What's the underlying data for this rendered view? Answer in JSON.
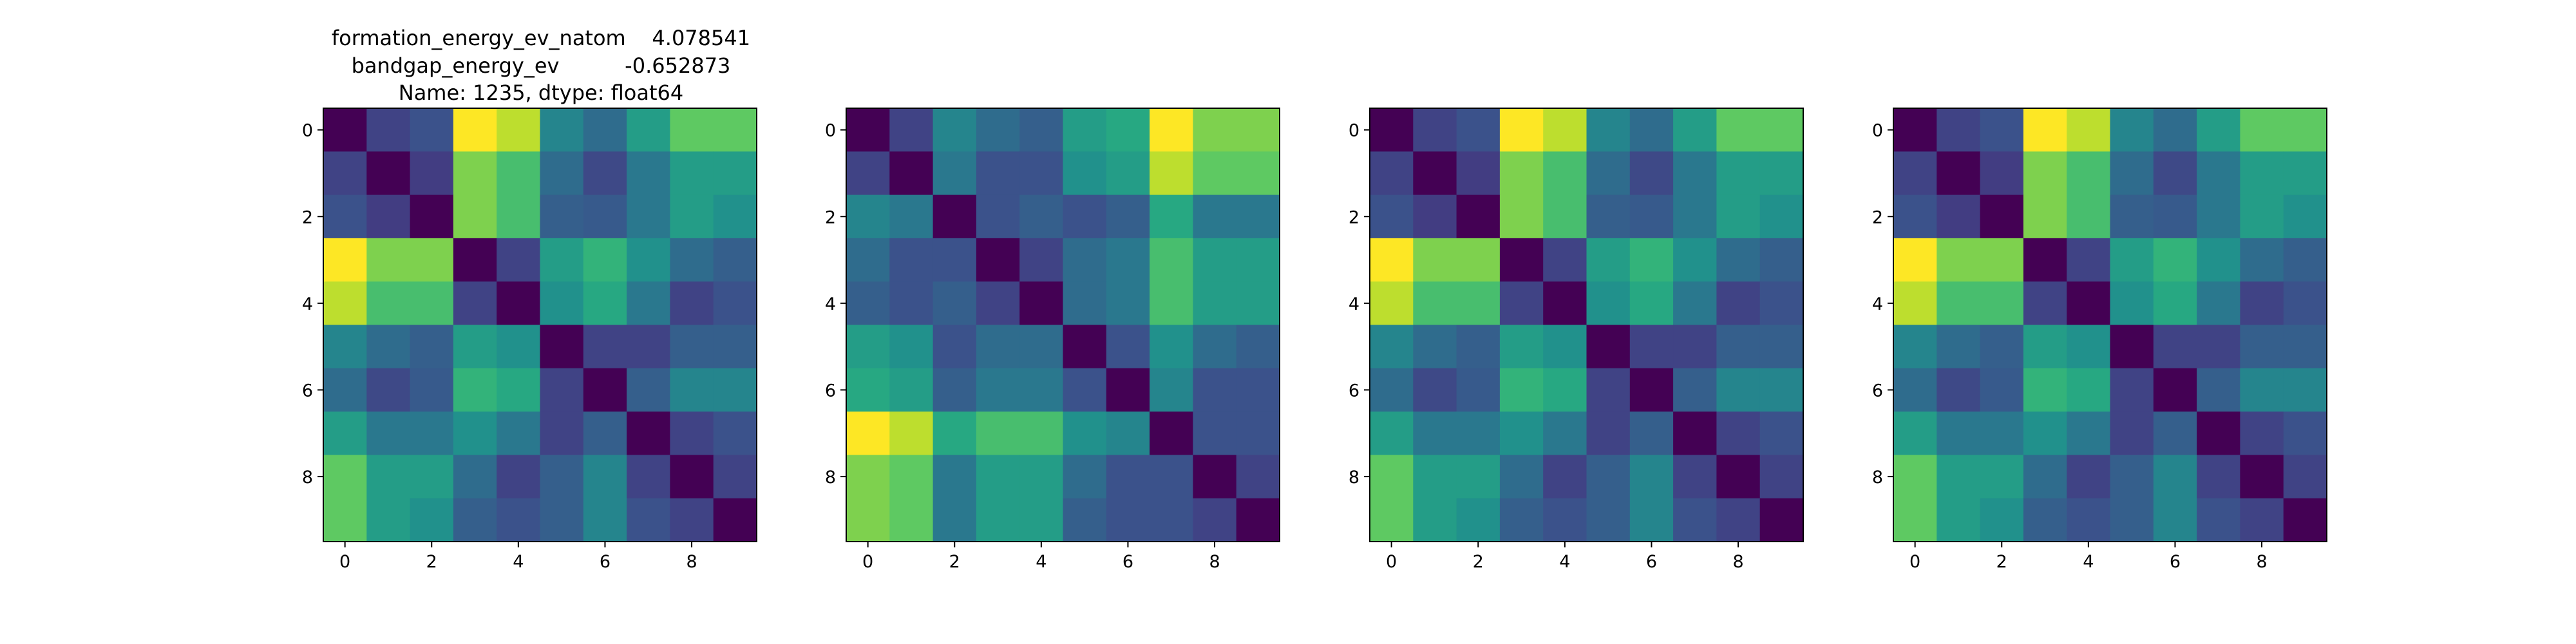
{
  "figure": {
    "title_lines": [
      "formation_energy_ev_natom    4.078541",
      "bandgap_energy_ev          -0.652873",
      "Name: 1235, dtype: float64"
    ]
  },
  "colormap": "viridis",
  "chart_data": [
    {
      "type": "heatmap",
      "title": "",
      "x_ticks": [
        0,
        2,
        4,
        6,
        8
      ],
      "y_ticks": [
        0,
        2,
        4,
        6,
        8
      ],
      "xlim": [
        -0.5,
        9.5
      ],
      "ylim": [
        9.5,
        -0.5
      ],
      "value_range": [
        0,
        1
      ],
      "matrix": [
        [
          0.0,
          0.2,
          0.25,
          1.0,
          0.9,
          0.45,
          0.35,
          0.55,
          0.75,
          0.75
        ],
        [
          0.2,
          0.0,
          0.18,
          0.8,
          0.7,
          0.35,
          0.22,
          0.4,
          0.55,
          0.55
        ],
        [
          0.25,
          0.18,
          0.0,
          0.8,
          0.7,
          0.3,
          0.28,
          0.4,
          0.55,
          0.5
        ],
        [
          1.0,
          0.8,
          0.8,
          0.0,
          0.2,
          0.55,
          0.65,
          0.5,
          0.35,
          0.3
        ],
        [
          0.9,
          0.7,
          0.7,
          0.2,
          0.0,
          0.5,
          0.6,
          0.4,
          0.2,
          0.25
        ],
        [
          0.45,
          0.35,
          0.3,
          0.55,
          0.5,
          0.0,
          0.2,
          0.2,
          0.3,
          0.3
        ],
        [
          0.35,
          0.22,
          0.28,
          0.65,
          0.6,
          0.2,
          0.0,
          0.3,
          0.45,
          0.45
        ],
        [
          0.55,
          0.4,
          0.4,
          0.5,
          0.4,
          0.2,
          0.3,
          0.0,
          0.2,
          0.25
        ],
        [
          0.75,
          0.55,
          0.55,
          0.35,
          0.2,
          0.3,
          0.45,
          0.2,
          0.0,
          0.2
        ],
        [
          0.75,
          0.55,
          0.5,
          0.3,
          0.25,
          0.3,
          0.45,
          0.25,
          0.2,
          0.0
        ]
      ]
    },
    {
      "type": "heatmap",
      "title": "",
      "x_ticks": [
        0,
        2,
        4,
        6,
        8
      ],
      "y_ticks": [
        0,
        2,
        4,
        6,
        8
      ],
      "xlim": [
        -0.5,
        9.5
      ],
      "ylim": [
        9.5,
        -0.5
      ],
      "value_range": [
        0,
        1
      ],
      "matrix": [
        [
          0.0,
          0.2,
          0.45,
          0.35,
          0.3,
          0.55,
          0.6,
          1.0,
          0.8,
          0.8
        ],
        [
          0.2,
          0.0,
          0.4,
          0.25,
          0.25,
          0.5,
          0.55,
          0.9,
          0.75,
          0.75
        ],
        [
          0.45,
          0.4,
          0.0,
          0.25,
          0.3,
          0.25,
          0.3,
          0.6,
          0.4,
          0.4
        ],
        [
          0.35,
          0.25,
          0.25,
          0.0,
          0.2,
          0.35,
          0.4,
          0.7,
          0.55,
          0.55
        ],
        [
          0.3,
          0.25,
          0.3,
          0.2,
          0.0,
          0.35,
          0.4,
          0.7,
          0.55,
          0.55
        ],
        [
          0.55,
          0.5,
          0.25,
          0.35,
          0.35,
          0.0,
          0.25,
          0.5,
          0.35,
          0.3
        ],
        [
          0.6,
          0.55,
          0.3,
          0.4,
          0.4,
          0.25,
          0.0,
          0.45,
          0.25,
          0.25
        ],
        [
          1.0,
          0.9,
          0.6,
          0.7,
          0.7,
          0.5,
          0.45,
          0.0,
          0.25,
          0.25
        ],
        [
          0.8,
          0.75,
          0.4,
          0.55,
          0.55,
          0.35,
          0.25,
          0.25,
          0.0,
          0.2
        ],
        [
          0.8,
          0.75,
          0.4,
          0.55,
          0.55,
          0.3,
          0.25,
          0.25,
          0.2,
          0.0
        ]
      ]
    },
    {
      "type": "heatmap",
      "title": "",
      "x_ticks": [
        0,
        2,
        4,
        6,
        8
      ],
      "y_ticks": [
        0,
        2,
        4,
        6,
        8
      ],
      "xlim": [
        -0.5,
        9.5
      ],
      "ylim": [
        9.5,
        -0.5
      ],
      "value_range": [
        0,
        1
      ],
      "matrix": [
        [
          0.0,
          0.2,
          0.25,
          1.0,
          0.9,
          0.45,
          0.35,
          0.55,
          0.75,
          0.75
        ],
        [
          0.2,
          0.0,
          0.18,
          0.8,
          0.7,
          0.35,
          0.22,
          0.4,
          0.55,
          0.55
        ],
        [
          0.25,
          0.18,
          0.0,
          0.8,
          0.7,
          0.3,
          0.28,
          0.4,
          0.55,
          0.5
        ],
        [
          1.0,
          0.8,
          0.8,
          0.0,
          0.2,
          0.55,
          0.65,
          0.5,
          0.35,
          0.3
        ],
        [
          0.9,
          0.7,
          0.7,
          0.2,
          0.0,
          0.5,
          0.6,
          0.4,
          0.2,
          0.25
        ],
        [
          0.45,
          0.35,
          0.3,
          0.55,
          0.5,
          0.0,
          0.2,
          0.2,
          0.3,
          0.3
        ],
        [
          0.35,
          0.22,
          0.28,
          0.65,
          0.6,
          0.2,
          0.0,
          0.3,
          0.45,
          0.45
        ],
        [
          0.55,
          0.4,
          0.4,
          0.5,
          0.4,
          0.2,
          0.3,
          0.0,
          0.2,
          0.25
        ],
        [
          0.75,
          0.55,
          0.55,
          0.35,
          0.2,
          0.3,
          0.45,
          0.2,
          0.0,
          0.2
        ],
        [
          0.75,
          0.55,
          0.5,
          0.3,
          0.25,
          0.3,
          0.45,
          0.25,
          0.2,
          0.0
        ]
      ]
    },
    {
      "type": "heatmap",
      "title": "",
      "x_ticks": [
        0,
        2,
        4,
        6,
        8
      ],
      "y_ticks": [
        0,
        2,
        4,
        6,
        8
      ],
      "xlim": [
        -0.5,
        9.5
      ],
      "ylim": [
        9.5,
        -0.5
      ],
      "value_range": [
        0,
        1
      ],
      "matrix": [
        [
          0.0,
          0.2,
          0.25,
          1.0,
          0.9,
          0.45,
          0.35,
          0.55,
          0.75,
          0.75
        ],
        [
          0.2,
          0.0,
          0.18,
          0.8,
          0.7,
          0.35,
          0.22,
          0.4,
          0.55,
          0.55
        ],
        [
          0.25,
          0.18,
          0.0,
          0.8,
          0.7,
          0.3,
          0.28,
          0.4,
          0.55,
          0.5
        ],
        [
          1.0,
          0.8,
          0.8,
          0.0,
          0.2,
          0.55,
          0.65,
          0.5,
          0.35,
          0.3
        ],
        [
          0.9,
          0.7,
          0.7,
          0.2,
          0.0,
          0.5,
          0.6,
          0.4,
          0.2,
          0.25
        ],
        [
          0.45,
          0.35,
          0.3,
          0.55,
          0.5,
          0.0,
          0.2,
          0.2,
          0.3,
          0.3
        ],
        [
          0.35,
          0.22,
          0.28,
          0.65,
          0.6,
          0.2,
          0.0,
          0.3,
          0.45,
          0.45
        ],
        [
          0.55,
          0.4,
          0.4,
          0.5,
          0.4,
          0.2,
          0.3,
          0.0,
          0.2,
          0.25
        ],
        [
          0.75,
          0.55,
          0.55,
          0.35,
          0.2,
          0.3,
          0.45,
          0.2,
          0.0,
          0.2
        ],
        [
          0.75,
          0.55,
          0.5,
          0.3,
          0.25,
          0.3,
          0.45,
          0.25,
          0.2,
          0.0
        ]
      ]
    }
  ]
}
